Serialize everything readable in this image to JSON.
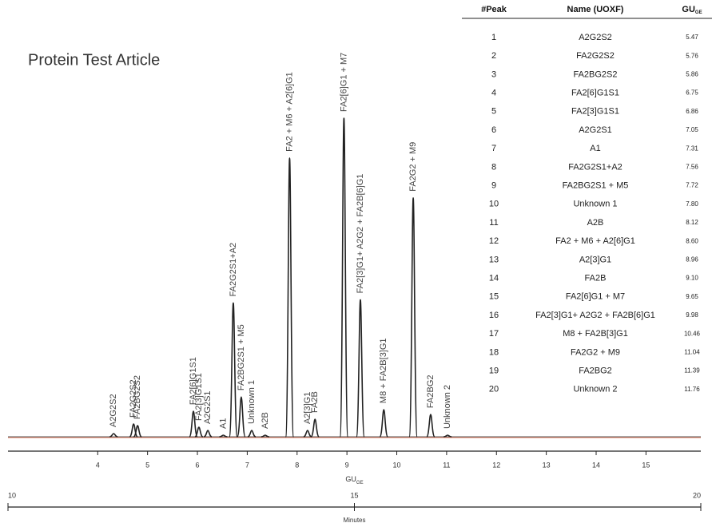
{
  "chart_data": {
    "type": "chromatogram",
    "title": "Protein Test Article",
    "x": [
      4.32,
      4.72,
      4.8,
      5.92,
      6.03,
      6.21,
      6.52,
      6.72,
      6.88,
      7.09,
      7.36,
      7.85,
      8.21,
      8.36,
      8.94,
      9.27,
      9.74,
      10.33,
      10.68,
      11.02
    ],
    "values": [
      1,
      4,
      3.5,
      8,
      3,
      2,
      0.5,
      42,
      12.5,
      2,
      0.5,
      87.5,
      2,
      5.5,
      100,
      43,
      8.5,
      75,
      7,
      0.5
    ],
    "peak_labels": [
      "A2G2S2",
      "FA2G2S2",
      "FA2BG2S2",
      "FA2[6]G1S1",
      "FA2[3]G1S1",
      "A2G2S1",
      "A1",
      "FA2G2S1+A2",
      "FA2BG2S1 + M5",
      "Unknown 1",
      "A2B",
      "FA2 + M6 + A2[6]G1",
      "A2[3]G1",
      "FA2B",
      "FA2[6]G1 + M7",
      "FA2[3]G1+ A2G2 + FA2B[6]G1",
      "M8 + FA2B[3]G1",
      "FA2G2 + M9",
      "FA2BG2",
      "Unknown 2"
    ],
    "color": "#222222",
    "baseline_color": "#e07a5f",
    "ylim": [
      0,
      100
    ],
    "xlim": [
      2.2,
      16.1
    ],
    "xticks": [
      4,
      5,
      6,
      7,
      8,
      9,
      10,
      11,
      12,
      13,
      14,
      15
    ],
    "x_label": "GU",
    "x_label_sub": "GE",
    "x2lim": [
      10,
      20
    ],
    "x2ticks": [
      10,
      15,
      20
    ],
    "x2_label": "Minutes"
  },
  "table": {
    "header": [
      "#Peak",
      "Name (UOXF)",
      "GU"
    ],
    "header_sub": "GE",
    "rows": [
      [
        "1",
        "A2G2S2",
        "5.47"
      ],
      [
        "2",
        "FA2G2S2",
        "5.76"
      ],
      [
        "3",
        "FA2BG2S2",
        "5.86"
      ],
      [
        "4",
        "FA2[6]G1S1",
        "6.75"
      ],
      [
        "5",
        "FA2[3]G1S1",
        "6.86"
      ],
      [
        "6",
        "A2G2S1",
        "7.05"
      ],
      [
        "7",
        "A1",
        "7.31"
      ],
      [
        "8",
        "FA2G2S1+A2",
        "7.56"
      ],
      [
        "9",
        "FA2BG2S1 + M5",
        "7.72"
      ],
      [
        "10",
        "Unknown 1",
        "7.80"
      ],
      [
        "11",
        "A2B",
        "8.12"
      ],
      [
        "12",
        "FA2 + M6 + A2[6]G1",
        "8.60"
      ],
      [
        "13",
        "A2[3]G1",
        "8.96"
      ],
      [
        "14",
        "FA2B",
        "9.10"
      ],
      [
        "15",
        "FA2[6]G1 + M7",
        "9.65"
      ],
      [
        "16",
        "FA2[3]G1+ A2G2 + FA2B[6]G1",
        "9.98"
      ],
      [
        "17",
        "M8 + FA2B[3]G1",
        "10.46"
      ],
      [
        "18",
        "FA2G2 + M9",
        "11.04"
      ],
      [
        "19",
        "FA2BG2",
        "11.39"
      ],
      [
        "20",
        "Unknown 2",
        "11.76"
      ]
    ]
  }
}
